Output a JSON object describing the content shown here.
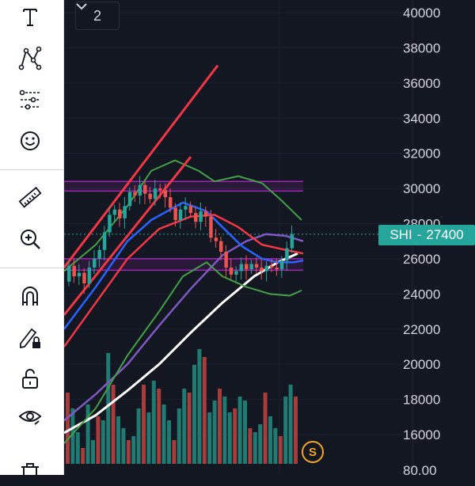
{
  "toolbar": {
    "items": [
      {
        "name": "text-tool",
        "icon": "text-icon"
      },
      {
        "name": "pattern-tool",
        "icon": "pattern-icon"
      },
      {
        "name": "forecast-tool",
        "icon": "forecast-icon"
      },
      {
        "name": "emoji-tool",
        "icon": "smiley-icon"
      },
      {
        "name": "ruler-tool",
        "icon": "ruler-icon"
      },
      {
        "name": "zoom-tool",
        "icon": "zoom-in-icon"
      },
      {
        "name": "magnet-tool",
        "icon": "magnet-icon"
      },
      {
        "name": "lock-drawing-tool",
        "icon": "pencil-lock-icon"
      },
      {
        "name": "unlock-tool",
        "icon": "unlock-icon"
      },
      {
        "name": "hide-tool",
        "icon": "eye-icon"
      },
      {
        "name": "trash-tool",
        "icon": "trash-icon"
      }
    ]
  },
  "collapse_button": {
    "count": "2"
  },
  "price_axis": {
    "labels": [
      "40000",
      "38000",
      "36000",
      "34000",
      "32000",
      "30000",
      "28000",
      "26000",
      "24000",
      "22000",
      "20000",
      "18000",
      "16000",
      "80.00"
    ]
  },
  "price_tag": {
    "symbol": "SHI",
    "value": "27400"
  },
  "badge": {
    "label": "S"
  },
  "colors": {
    "background": "#131722",
    "up_candle": "#26a69a",
    "down_candle": "#ef5350",
    "zone_purple": "#9c27b0",
    "ma_white": "#ffffff",
    "ma_blue": "#2962ff",
    "ma_red": "#f23645",
    "ma_purple": "#7e57c2",
    "band_green": "#43a047"
  }
}
